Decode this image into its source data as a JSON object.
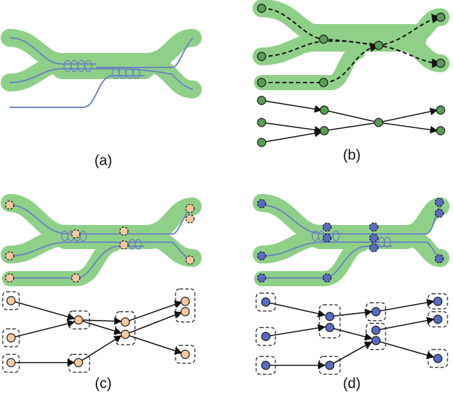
{
  "panels": [
    {
      "id": "a",
      "caption": "(a)"
    },
    {
      "id": "b",
      "caption": "(b)"
    },
    {
      "id": "c",
      "caption": "(c)"
    },
    {
      "id": "d",
      "caption": "(d)"
    }
  ],
  "colors": {
    "tube": "#8fd088",
    "strand": "#6b86c0",
    "green_node": "#5b9c57",
    "orange_node": "#f5c8a0",
    "blue_node": "#5a6cc0",
    "edge": "#111111"
  }
}
